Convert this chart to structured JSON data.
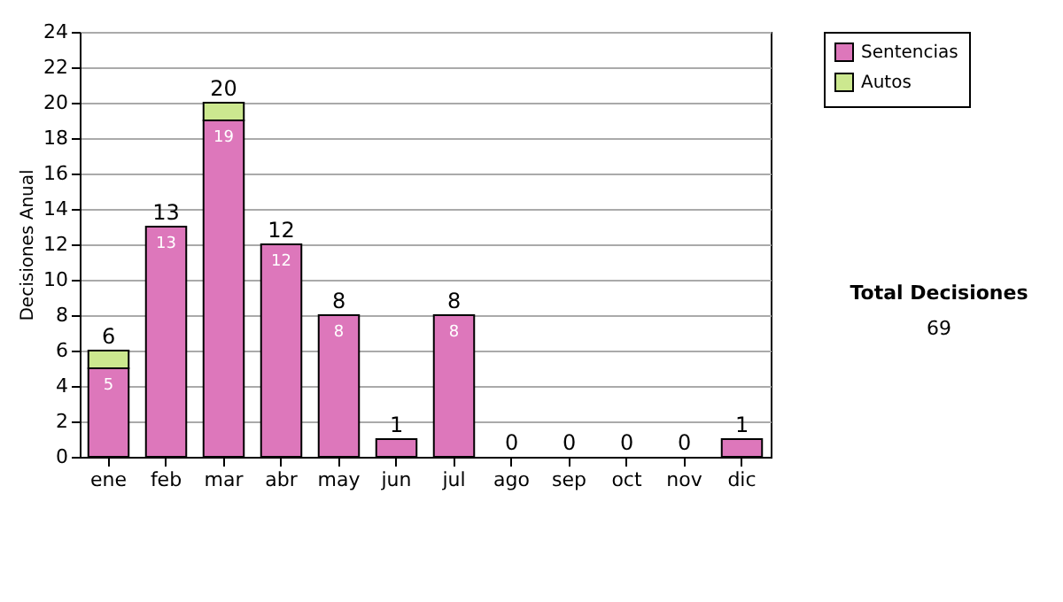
{
  "chart_data": {
    "type": "bar",
    "stacked": true,
    "ylabel": "Decisiones Anual",
    "categories": [
      "ene",
      "feb",
      "mar",
      "abr",
      "may",
      "jun",
      "jul",
      "ago",
      "sep",
      "oct",
      "nov",
      "dic"
    ],
    "series": [
      {
        "name": "Sentencias",
        "color": "#dd77bb",
        "values": [
          5,
          13,
          19,
          12,
          8,
          1,
          8,
          0,
          0,
          0,
          0,
          1
        ],
        "value_labels": [
          "5",
          "13",
          "19",
          "12",
          "8",
          null,
          "8",
          null,
          null,
          null,
          null,
          null
        ]
      },
      {
        "name": "Autos",
        "color": "#cce88f",
        "values": [
          1,
          0,
          1,
          0,
          0,
          0,
          0,
          0,
          0,
          0,
          0,
          0
        ]
      }
    ],
    "totals": [
      "6",
      "13",
      "20",
      "12",
      "8",
      "1",
      "8",
      "0",
      "0",
      "0",
      "0",
      "1"
    ],
    "ylim": [
      0,
      24
    ],
    "yticks": [
      0,
      2,
      4,
      6,
      8,
      10,
      12,
      14,
      16,
      18,
      20,
      22,
      24
    ],
    "grid": "y",
    "legend": "right",
    "annotations": [
      "Total Decisiones",
      "69"
    ]
  }
}
